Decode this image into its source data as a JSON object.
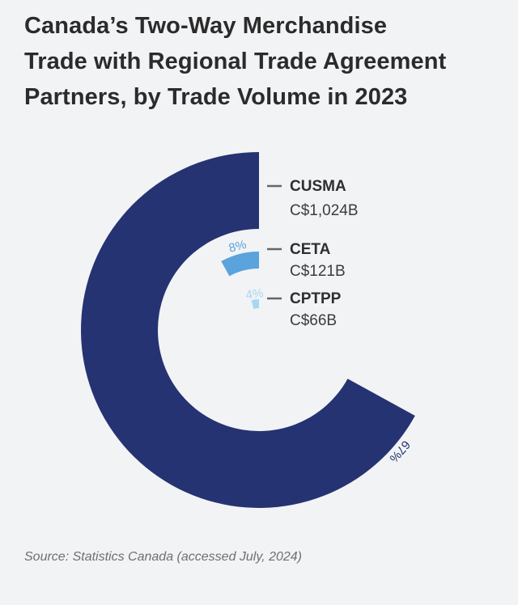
{
  "title_lines": [
    "Canada’s Two-Way Merchandise",
    "Trade with Regional Trade Agreement",
    "Partners, by Trade Volume in 2023"
  ],
  "source": "Source: Statistics Canada (accessed July, 2024)",
  "chart_data": {
    "type": "radial-bar",
    "title": "Canada’s Two-Way Merchandise Trade with Regional Trade Agreement Partners, by Trade Volume in 2023",
    "series": [
      {
        "name": "CUSMA",
        "value_label": "C$1,024B",
        "value": 1024,
        "percent": 67,
        "percent_label": "67%",
        "color": "#253372"
      },
      {
        "name": "CETA",
        "value_label": "C$121B",
        "value": 121,
        "percent": 8,
        "percent_label": "8%",
        "color": "#5aa3dc"
      },
      {
        "name": "CPTPP",
        "value_label": "C$66B",
        "value": 66,
        "percent": 4,
        "percent_label": "4%",
        "color": "#a6d8f2"
      }
    ]
  }
}
